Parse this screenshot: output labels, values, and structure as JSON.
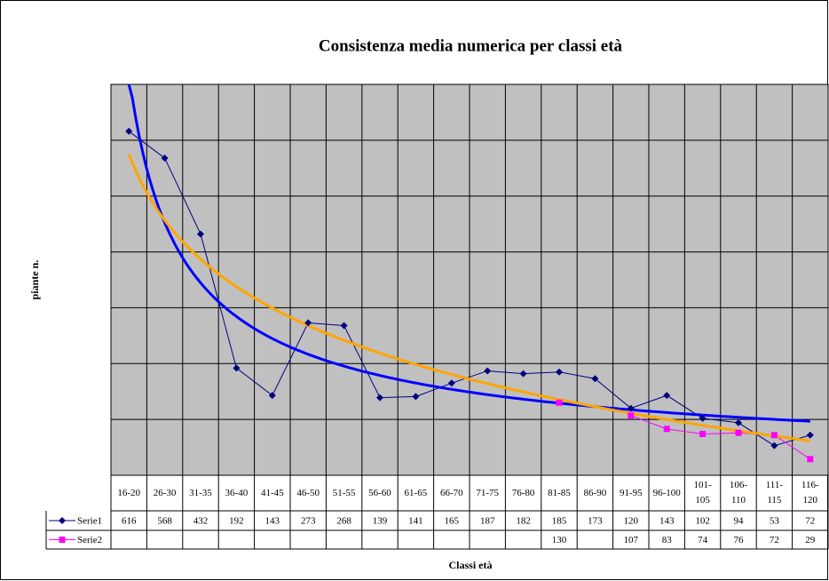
{
  "chart_data": {
    "type": "line",
    "title": "Consistenza media numerica per classi età",
    "x_label": "Classi età",
    "y_label": "piante n.",
    "categories": [
      "16-20",
      "26-30",
      "31-35",
      "36-40",
      "41-45",
      "46-50",
      "51-55",
      "56-60",
      "61-65",
      "66-70",
      "71-75",
      "76-80",
      "81-85",
      "86-90",
      "91-95",
      "96-100",
      "101-105",
      "106-110",
      "111-115",
      "116-120"
    ],
    "series": [
      {
        "name": "Serie1",
        "color": "#000080",
        "marker": "diamond",
        "values": [
          616,
          568,
          432,
          192,
          143,
          273,
          268,
          139,
          141,
          165,
          187,
          182,
          185,
          173,
          120,
          143,
          102,
          94,
          53,
          72
        ]
      },
      {
        "name": "Serie2",
        "color": "#ff00ff",
        "marker": "square",
        "values": [
          null,
          null,
          null,
          null,
          null,
          null,
          null,
          null,
          null,
          null,
          null,
          null,
          130,
          null,
          107,
          83,
          74,
          76,
          72,
          29
        ]
      }
    ],
    "trendlines": [
      {
        "series": 0,
        "type": "power",
        "color": "#0000ff"
      },
      {
        "series": 0,
        "type": "logarithmic",
        "color": "#ffa500"
      }
    ],
    "ylim": [
      0,
      700
    ],
    "yticks": [
      0,
      100,
      200,
      300,
      400,
      500,
      600,
      700
    ],
    "grid": true,
    "plot_background": "#c0c0c0",
    "data_table": true
  }
}
